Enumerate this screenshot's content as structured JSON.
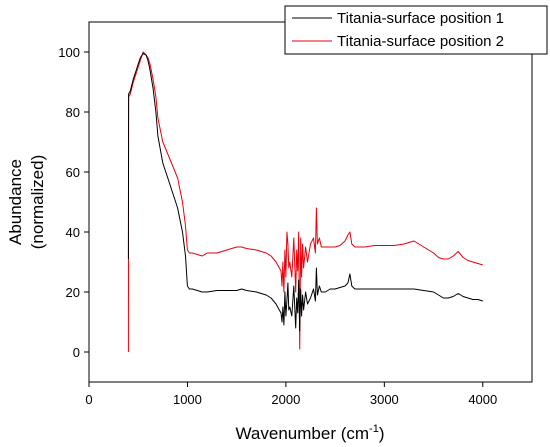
{
  "chart_data": {
    "type": "line",
    "title": "",
    "xlabel": "Wavenumber (cm",
    "xlabel_sup": "-1",
    "xlabel_suffix": ")",
    "ylabel_line1": "Abundance",
    "ylabel_line2": "(normalized)",
    "xlim": [
      0,
      4500
    ],
    "ylim": [
      -10,
      110
    ],
    "x_ticks": [
      0,
      1000,
      2000,
      3000,
      4000
    ],
    "y_ticks": [
      0,
      20,
      40,
      60,
      80,
      100
    ],
    "legend_position": "top-right",
    "grid": false,
    "series": [
      {
        "name": "Titania-surface position 1",
        "color": "#000000",
        "points": [
          [
            400,
            31
          ],
          [
            402,
            86
          ],
          [
            420,
            87
          ],
          [
            450,
            91
          ],
          [
            480,
            94
          ],
          [
            500,
            96
          ],
          [
            520,
            98
          ],
          [
            550,
            99.5
          ],
          [
            580,
            99
          ],
          [
            600,
            97
          ],
          [
            620,
            94
          ],
          [
            650,
            88
          ],
          [
            680,
            80
          ],
          [
            700,
            72
          ],
          [
            750,
            63
          ],
          [
            800,
            58
          ],
          [
            850,
            53
          ],
          [
            900,
            48
          ],
          [
            950,
            40
          ],
          [
            980,
            32
          ],
          [
            1000,
            22
          ],
          [
            1020,
            21
          ],
          [
            1050,
            21
          ],
          [
            1100,
            20.5
          ],
          [
            1150,
            20
          ],
          [
            1200,
            20
          ],
          [
            1300,
            20.5
          ],
          [
            1400,
            20.5
          ],
          [
            1500,
            20.5
          ],
          [
            1550,
            21
          ],
          [
            1600,
            20.5
          ],
          [
            1700,
            20
          ],
          [
            1800,
            19
          ],
          [
            1850,
            18
          ],
          [
            1900,
            16
          ],
          [
            1950,
            13
          ],
          [
            1960,
            10
          ],
          [
            1970,
            15
          ],
          [
            1980,
            9
          ],
          [
            1990,
            20
          ],
          [
            2000,
            12
          ],
          [
            2010,
            17
          ],
          [
            2020,
            23
          ],
          [
            2030,
            14
          ],
          [
            2040,
            15
          ],
          [
            2060,
            12
          ],
          [
            2080,
            22
          ],
          [
            2100,
            8
          ],
          [
            2110,
            18
          ],
          [
            2120,
            13
          ],
          [
            2130,
            24
          ],
          [
            2140,
            7
          ],
          [
            2150,
            21
          ],
          [
            2160,
            12
          ],
          [
            2170,
            19
          ],
          [
            2180,
            14
          ],
          [
            2200,
            20
          ],
          [
            2220,
            16
          ],
          [
            2250,
            18
          ],
          [
            2280,
            21
          ],
          [
            2300,
            17
          ],
          [
            2310,
            28
          ],
          [
            2320,
            19
          ],
          [
            2340,
            22
          ],
          [
            2360,
            20
          ],
          [
            2400,
            20
          ],
          [
            2450,
            21
          ],
          [
            2500,
            21
          ],
          [
            2550,
            21.5
          ],
          [
            2600,
            22
          ],
          [
            2630,
            23
          ],
          [
            2650,
            26
          ],
          [
            2670,
            22
          ],
          [
            2700,
            21
          ],
          [
            2800,
            21
          ],
          [
            2900,
            21
          ],
          [
            3000,
            21
          ],
          [
            3100,
            21
          ],
          [
            3200,
            21
          ],
          [
            3300,
            21
          ],
          [
            3400,
            20.5
          ],
          [
            3500,
            20
          ],
          [
            3550,
            19
          ],
          [
            3600,
            18
          ],
          [
            3650,
            18
          ],
          [
            3700,
            18.5
          ],
          [
            3750,
            19.5
          ],
          [
            3800,
            18.5
          ],
          [
            3850,
            18
          ],
          [
            3900,
            17.5
          ],
          [
            3950,
            17.5
          ],
          [
            4000,
            17
          ]
        ]
      },
      {
        "name": "Titania-surface position 2",
        "color": "#e8000b",
        "points": [
          [
            400,
            0
          ],
          [
            402,
            85
          ],
          [
            420,
            86
          ],
          [
            450,
            90
          ],
          [
            480,
            93
          ],
          [
            500,
            95
          ],
          [
            520,
            97
          ],
          [
            550,
            100
          ],
          [
            580,
            99
          ],
          [
            600,
            98
          ],
          [
            620,
            96
          ],
          [
            650,
            91
          ],
          [
            680,
            85
          ],
          [
            700,
            78
          ],
          [
            750,
            70
          ],
          [
            800,
            66
          ],
          [
            850,
            62
          ],
          [
            900,
            58
          ],
          [
            950,
            50
          ],
          [
            980,
            42
          ],
          [
            1000,
            34
          ],
          [
            1020,
            33
          ],
          [
            1050,
            33
          ],
          [
            1100,
            32.5
          ],
          [
            1150,
            32
          ],
          [
            1200,
            33
          ],
          [
            1300,
            33
          ],
          [
            1400,
            34
          ],
          [
            1500,
            35
          ],
          [
            1550,
            35
          ],
          [
            1600,
            34.5
          ],
          [
            1700,
            34
          ],
          [
            1800,
            33
          ],
          [
            1850,
            32
          ],
          [
            1900,
            30
          ],
          [
            1950,
            27
          ],
          [
            1960,
            22
          ],
          [
            1970,
            30
          ],
          [
            1980,
            20
          ],
          [
            1990,
            34
          ],
          [
            2000,
            25
          ],
          [
            2010,
            40
          ],
          [
            2020,
            36
          ],
          [
            2030,
            28
          ],
          [
            2040,
            30
          ],
          [
            2060,
            25
          ],
          [
            2080,
            38
          ],
          [
            2100,
            20
          ],
          [
            2110,
            34
          ],
          [
            2120,
            27
          ],
          [
            2130,
            40
          ],
          [
            2140,
            1
          ],
          [
            2150,
            38
          ],
          [
            2160,
            25
          ],
          [
            2170,
            36
          ],
          [
            2180,
            28
          ],
          [
            2200,
            35
          ],
          [
            2220,
            30
          ],
          [
            2250,
            36
          ],
          [
            2280,
            38
          ],
          [
            2300,
            33
          ],
          [
            2310,
            48
          ],
          [
            2320,
            36
          ],
          [
            2340,
            38
          ],
          [
            2360,
            35
          ],
          [
            2400,
            35
          ],
          [
            2450,
            35
          ],
          [
            2500,
            35
          ],
          [
            2550,
            35.5
          ],
          [
            2600,
            37
          ],
          [
            2630,
            39
          ],
          [
            2650,
            40
          ],
          [
            2670,
            36
          ],
          [
            2700,
            35
          ],
          [
            2800,
            35
          ],
          [
            2900,
            35.5
          ],
          [
            3000,
            35.5
          ],
          [
            3100,
            35.5
          ],
          [
            3200,
            36
          ],
          [
            3300,
            37
          ],
          [
            3400,
            35
          ],
          [
            3500,
            33
          ],
          [
            3550,
            31.5
          ],
          [
            3600,
            31
          ],
          [
            3650,
            31
          ],
          [
            3700,
            32
          ],
          [
            3750,
            33.5
          ],
          [
            3800,
            31.5
          ],
          [
            3850,
            30.5
          ],
          [
            3900,
            30
          ],
          [
            3950,
            29.5
          ],
          [
            4000,
            29
          ]
        ]
      }
    ]
  }
}
